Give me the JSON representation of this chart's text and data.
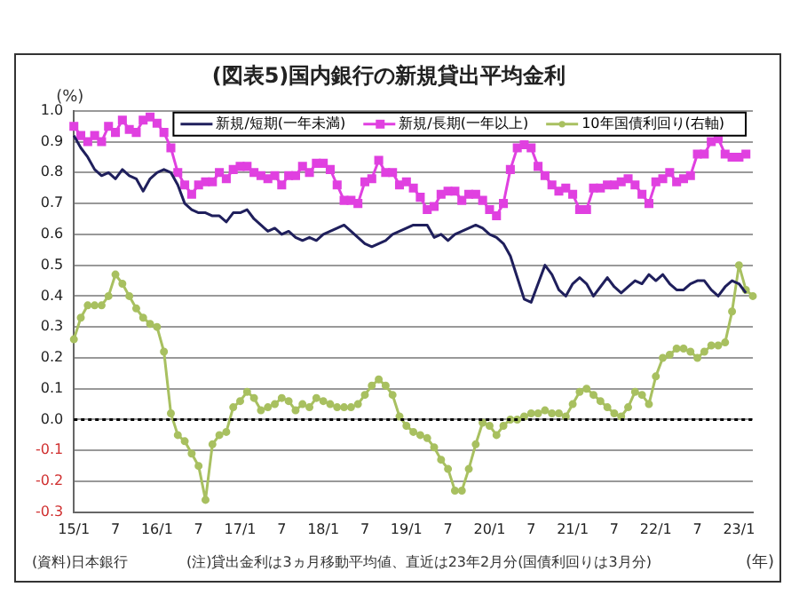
{
  "chart_data": {
    "type": "line",
    "title": "(図表5)国内銀行の新規貸出平均金利",
    "ylabel": "(%)",
    "xlabel": "(年)",
    "annotations": [
      "(資料)日本銀行",
      "(注)貸出金利は3ヵ月移動平均値、直近は23年2月分(国債利回りは3月分)"
    ],
    "categories": [
      "15/1",
      null,
      null,
      null,
      null,
      null,
      "7",
      null,
      null,
      null,
      null,
      null,
      "16/1",
      null,
      null,
      null,
      null,
      null,
      "7",
      null,
      null,
      null,
      null,
      null,
      "17/1",
      null,
      null,
      null,
      null,
      null,
      "7",
      null,
      null,
      null,
      null,
      null,
      "18/1",
      null,
      null,
      null,
      null,
      null,
      "7",
      null,
      null,
      null,
      null,
      null,
      "19/1",
      null,
      null,
      null,
      null,
      null,
      "7",
      null,
      null,
      null,
      null,
      null,
      "20/1",
      null,
      null,
      null,
      null,
      null,
      "7",
      null,
      null,
      null,
      null,
      null,
      "21/1",
      null,
      null,
      null,
      null,
      null,
      "7",
      null,
      null,
      null,
      null,
      null,
      "22/1",
      null,
      null,
      null,
      null,
      null,
      "7",
      null,
      null,
      null,
      null,
      null,
      "23/1",
      null,
      null
    ],
    "series": [
      {
        "name": "新規/短期(一年未満)",
        "color": "#1f1f5c",
        "marker": "none",
        "values": [
          0.92,
          0.88,
          0.85,
          0.81,
          0.79,
          0.8,
          0.78,
          0.81,
          0.79,
          0.78,
          0.74,
          0.78,
          0.8,
          0.81,
          0.8,
          0.76,
          0.7,
          0.68,
          0.67,
          0.67,
          0.66,
          0.66,
          0.64,
          0.67,
          0.67,
          0.68,
          0.65,
          0.63,
          0.61,
          0.62,
          0.6,
          0.61,
          0.59,
          0.58,
          0.59,
          0.58,
          0.6,
          0.61,
          0.62,
          0.63,
          0.61,
          0.59,
          0.57,
          0.56,
          0.57,
          0.58,
          0.6,
          0.61,
          0.62,
          0.63,
          0.63,
          0.63,
          0.59,
          0.6,
          0.58,
          0.6,
          0.61,
          0.62,
          0.63,
          0.62,
          0.6,
          0.59,
          0.57,
          0.53,
          0.46,
          0.39,
          0.38,
          0.44,
          0.5,
          0.47,
          0.42,
          0.4,
          0.44,
          0.46,
          0.44,
          0.4,
          0.43,
          0.46,
          0.43,
          0.41,
          0.43,
          0.45,
          0.44,
          0.47,
          0.45,
          0.47,
          0.44,
          0.42,
          0.42,
          0.44,
          0.45,
          0.45,
          0.42,
          0.4,
          0.43,
          0.45,
          0.44,
          0.41,
          null
        ]
      },
      {
        "name": "新規/長期(一年以上)",
        "color": "#e040e0",
        "marker": "square",
        "values": [
          0.95,
          0.92,
          0.9,
          0.92,
          0.9,
          0.95,
          0.93,
          0.97,
          0.94,
          0.93,
          0.97,
          0.98,
          0.96,
          0.93,
          0.88,
          0.8,
          0.76,
          0.73,
          0.76,
          0.77,
          0.77,
          0.8,
          0.78,
          0.81,
          0.82,
          0.82,
          0.8,
          0.79,
          0.78,
          0.79,
          0.76,
          0.79,
          0.79,
          0.82,
          0.8,
          0.83,
          0.83,
          0.81,
          0.76,
          0.71,
          0.71,
          0.7,
          0.77,
          0.78,
          0.84,
          0.8,
          0.8,
          0.76,
          0.77,
          0.75,
          0.72,
          0.68,
          0.69,
          0.73,
          0.74,
          0.74,
          0.71,
          0.73,
          0.73,
          0.71,
          0.68,
          0.66,
          0.7,
          0.81,
          0.88,
          0.89,
          0.88,
          0.82,
          0.79,
          0.76,
          0.74,
          0.75,
          0.73,
          0.68,
          0.68,
          0.75,
          0.75,
          0.76,
          0.76,
          0.77,
          0.78,
          0.76,
          0.73,
          0.7,
          0.77,
          0.78,
          0.8,
          0.77,
          0.78,
          0.79,
          0.86,
          0.86,
          0.9,
          0.91,
          0.86,
          0.85,
          0.85,
          0.86,
          null
        ]
      },
      {
        "name": "10年国債利回り(右軸)",
        "color": "#a8c060",
        "marker": "circle",
        "values": [
          0.26,
          0.33,
          0.37,
          0.37,
          0.37,
          0.4,
          0.47,
          0.44,
          0.4,
          0.36,
          0.33,
          0.31,
          0.3,
          0.22,
          0.02,
          -0.05,
          -0.07,
          -0.11,
          -0.15,
          -0.26,
          -0.08,
          -0.05,
          -0.04,
          0.04,
          0.06,
          0.09,
          0.07,
          0.03,
          0.04,
          0.05,
          0.07,
          0.06,
          0.03,
          0.05,
          0.04,
          0.07,
          0.06,
          0.05,
          0.04,
          0.04,
          0.04,
          0.05,
          0.08,
          0.11,
          0.13,
          0.11,
          0.08,
          0.01,
          -0.02,
          -0.04,
          -0.05,
          -0.06,
          -0.09,
          -0.13,
          -0.16,
          -0.23,
          -0.23,
          -0.16,
          -0.08,
          -0.01,
          -0.02,
          -0.05,
          -0.02,
          0.0,
          0.0,
          0.01,
          0.02,
          0.02,
          0.03,
          0.02,
          0.02,
          0.01,
          0.05,
          0.09,
          0.1,
          0.08,
          0.06,
          0.04,
          0.02,
          0.01,
          0.04,
          0.09,
          0.08,
          0.05,
          0.14,
          0.2,
          0.21,
          0.23,
          0.23,
          0.22,
          0.2,
          0.22,
          0.24,
          0.24,
          0.25,
          0.35,
          0.5,
          0.42,
          0.4
        ]
      }
    ],
    "ylim": [
      -0.3,
      1.0
    ],
    "yticks": [
      {
        "value": -0.3,
        "label": "-0.3"
      },
      {
        "value": -0.2,
        "label": "-0.2"
      },
      {
        "value": -0.1,
        "label": "-0.1"
      },
      {
        "value": 0,
        "label": "0.0"
      },
      {
        "value": 0.1,
        "label": "0.1"
      },
      {
        "value": 0.2,
        "label": "0.2"
      },
      {
        "value": 0.3,
        "label": "0.3"
      },
      {
        "value": 0.4,
        "label": "0.4"
      },
      {
        "value": 0.5,
        "label": "0.5"
      },
      {
        "value": 0.6,
        "label": "0.6"
      },
      {
        "value": 0.7,
        "label": "0.7"
      },
      {
        "value": 0.8,
        "label": "0.8"
      },
      {
        "value": 0.9,
        "label": "0.9"
      },
      {
        "value": 1,
        "label": "1.0"
      }
    ],
    "ref_lines": [
      {
        "axis": "y",
        "value": 0,
        "color": "#000000",
        "line_style": "dotted"
      }
    ],
    "grid": "y",
    "legend": "top right"
  }
}
